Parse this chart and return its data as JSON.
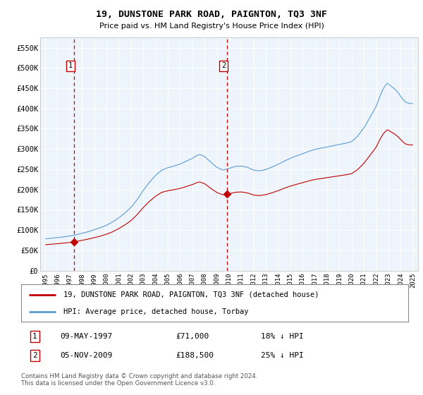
{
  "title": "19, DUNSTONE PARK ROAD, PAIGNTON, TQ3 3NF",
  "subtitle": "Price paid vs. HM Land Registry's House Price Index (HPI)",
  "bg_color": "#eef4fb",
  "ylim": [
    0,
    575000
  ],
  "yticks": [
    0,
    50000,
    100000,
    150000,
    200000,
    250000,
    300000,
    350000,
    400000,
    450000,
    500000,
    550000
  ],
  "ytick_labels": [
    "£0",
    "£50K",
    "£100K",
    "£150K",
    "£200K",
    "£250K",
    "£300K",
    "£350K",
    "£400K",
    "£450K",
    "£500K",
    "£550K"
  ],
  "transaction1_x": 1997.36,
  "transaction1_y": 71000,
  "transaction1_label": "1",
  "transaction1_date": "09-MAY-1997",
  "transaction1_price": "£71,000",
  "transaction1_hpi": "18% ↓ HPI",
  "transaction2_x": 2009.84,
  "transaction2_y": 188500,
  "transaction2_label": "2",
  "transaction2_date": "05-NOV-2009",
  "transaction2_price": "£188,500",
  "transaction2_hpi": "25% ↓ HPI",
  "hpi_line_color": "#5b9bd5",
  "price_line_color": "#c00000",
  "vline_color": "#cc0000",
  "legend_house_label": "19, DUNSTONE PARK ROAD, PAIGNTON, TQ3 3NF (detached house)",
  "legend_hpi_label": "HPI: Average price, detached house, Torbay",
  "footer_text": "Contains HM Land Registry data © Crown copyright and database right 2024.\nThis data is licensed under the Open Government Licence v3.0.",
  "xlim_start": 1994.6,
  "xlim_end": 2025.4
}
